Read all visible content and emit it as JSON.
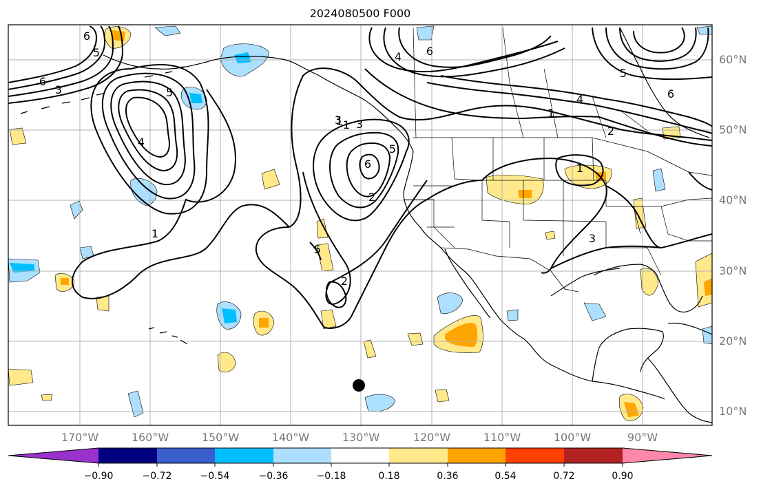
{
  "title": "2024080500 F000",
  "longitude_labels": [
    "170°W",
    "160°W",
    "150°W",
    "140°W",
    "130°W",
    "120°W",
    "110°W",
    "100°W",
    "90°W"
  ],
  "latitude_labels": [
    "60°N",
    "50°N",
    "40°N",
    "30°N",
    "20°N",
    "10°N"
  ],
  "contour_labels": [
    "6",
    "3",
    "1",
    "5",
    "4",
    "2",
    "6",
    "1",
    "5",
    "3",
    "6",
    "4",
    "2",
    "1",
    "3",
    "5",
    "6",
    "4",
    "1",
    "2",
    "6",
    "5",
    "1",
    "5",
    "3"
  ],
  "colorbar": {
    "ticks": [
      "−0.90",
      "−0.72",
      "−0.54",
      "−0.36",
      "−0.18",
      "0.18",
      "0.36",
      "0.54",
      "0.72",
      "0.90"
    ],
    "colors": {
      "under": "#9932CC",
      "bins": [
        "#000080",
        "#3A5FCD",
        "#00BFFF",
        "#ADDFFF",
        "#FFFFFF",
        "#FFE98A",
        "#FFA500",
        "#FF4000",
        "#B22222",
        "#FF88AA"
      ],
      "over": "#FF88AA"
    }
  },
  "marker": {
    "label": "black dot",
    "color": "#000000"
  },
  "colors": {
    "gridline": "#b0b0b0",
    "axis_label": "#777777",
    "contour": "#000000"
  }
}
